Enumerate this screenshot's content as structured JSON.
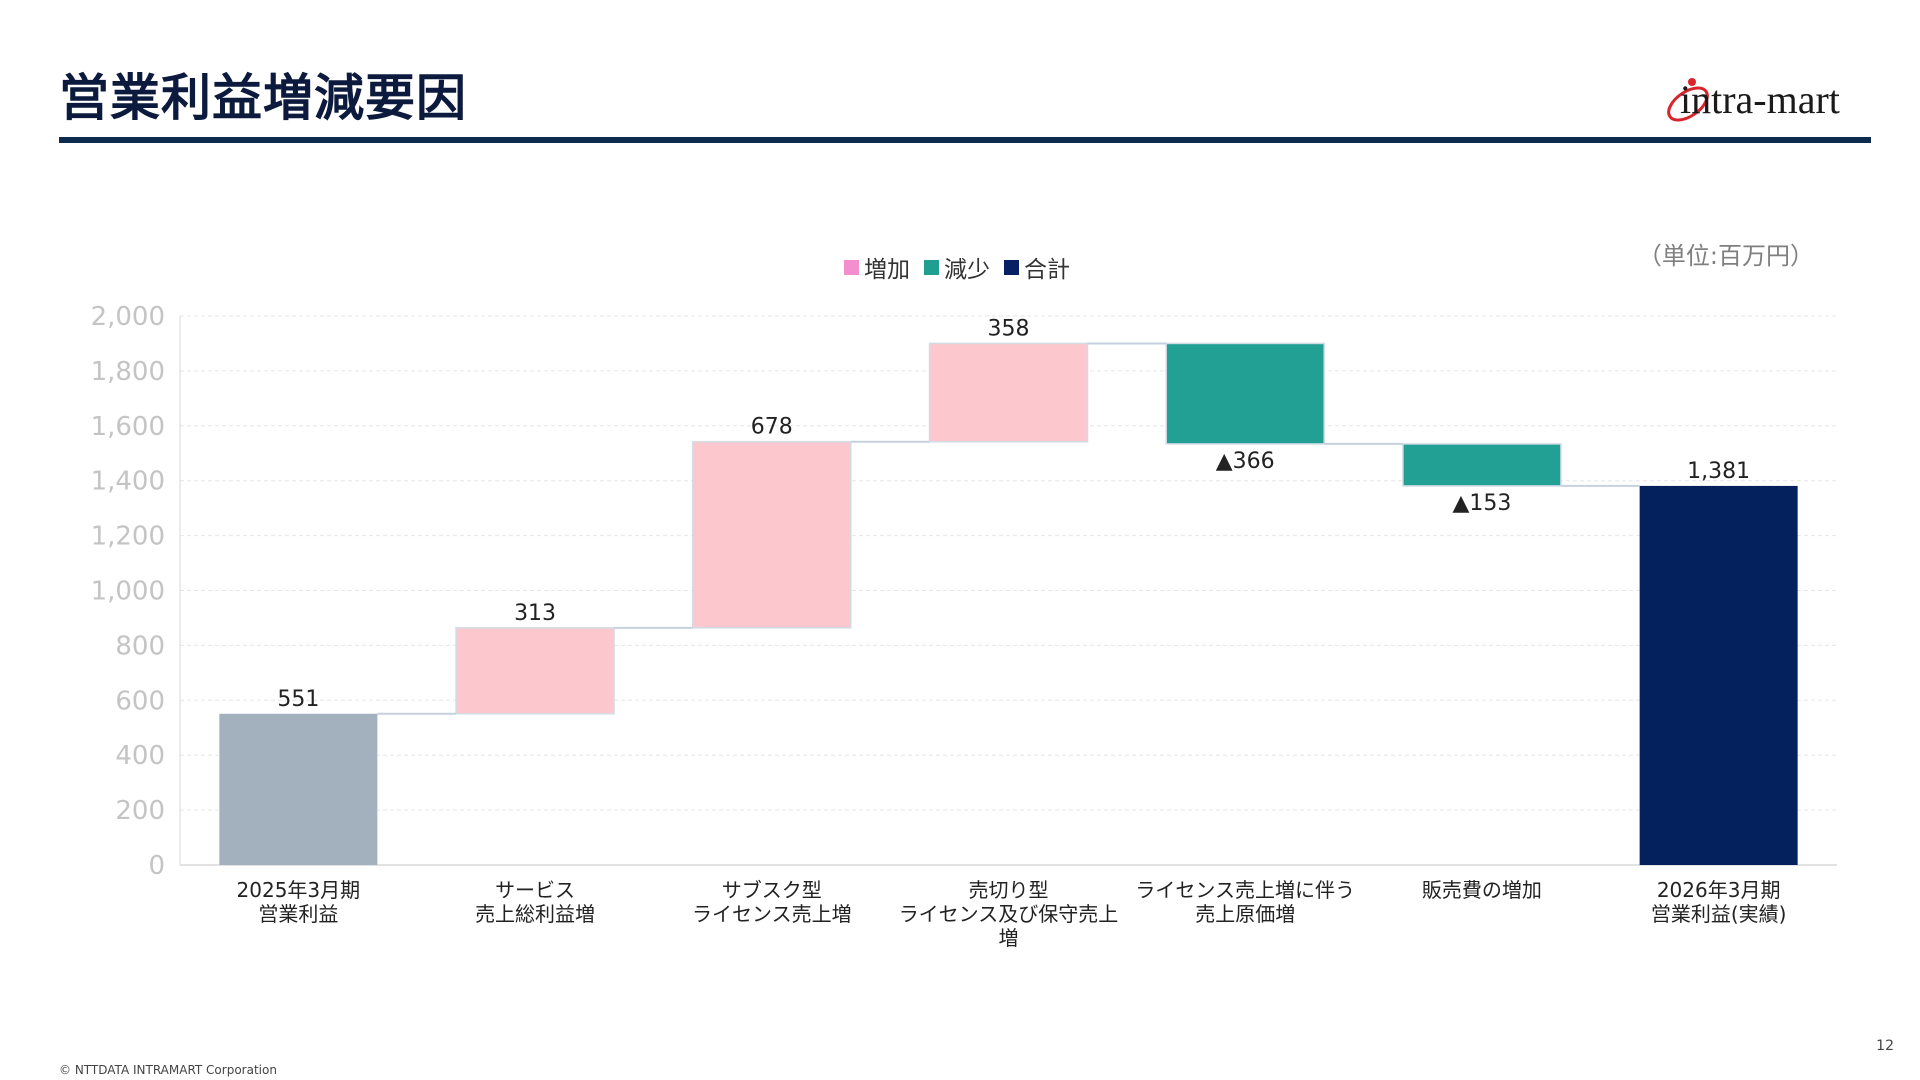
{
  "slide": {
    "title": "営業利益増減要因",
    "logo_text": "intra-mart",
    "unit": "（単位:百万円）",
    "footer": "© NTTDATA INTRAMART Corporation",
    "page_number": "12"
  },
  "legend": [
    {
      "label": "増加",
      "color": "#f48fcf"
    },
    {
      "label": "減少",
      "color": "#1f9e91"
    },
    {
      "label": "合計",
      "color": "#062063"
    }
  ],
  "chart_data": {
    "type": "bar",
    "subtype": "waterfall",
    "ylim": [
      0,
      2000
    ],
    "yticks": [
      "0",
      "200",
      "400",
      "600",
      "800",
      "1,000",
      "1,200",
      "1,400",
      "1,600",
      "1,800",
      "2,000"
    ],
    "grid": true,
    "legend_position": "top-center",
    "categories": [
      "2025年3月期\n営業利益",
      "サービス\n売上総利益増",
      "サブスク型\nライセンス売上増",
      "売切り型\nライセンス及び保守売上増",
      "ライセンス売上増に伴う\n売上原価増",
      "販売費の増加",
      "2026年3月期\n営業利益(実績)"
    ],
    "values": [
      551,
      313,
      678,
      358,
      -366,
      -153,
      1381
    ],
    "kinds": [
      "start",
      "increase",
      "increase",
      "increase",
      "decrease",
      "decrease",
      "total"
    ],
    "data_labels": [
      "551",
      "313",
      "678",
      "358",
      "▲366",
      "▲153",
      "1,381"
    ],
    "colors": {
      "start": "#a2b1bd",
      "increase": "#fdc8cd",
      "decrease": "#22a093",
      "total": "#04215e",
      "connector": "#c6d1df"
    }
  }
}
